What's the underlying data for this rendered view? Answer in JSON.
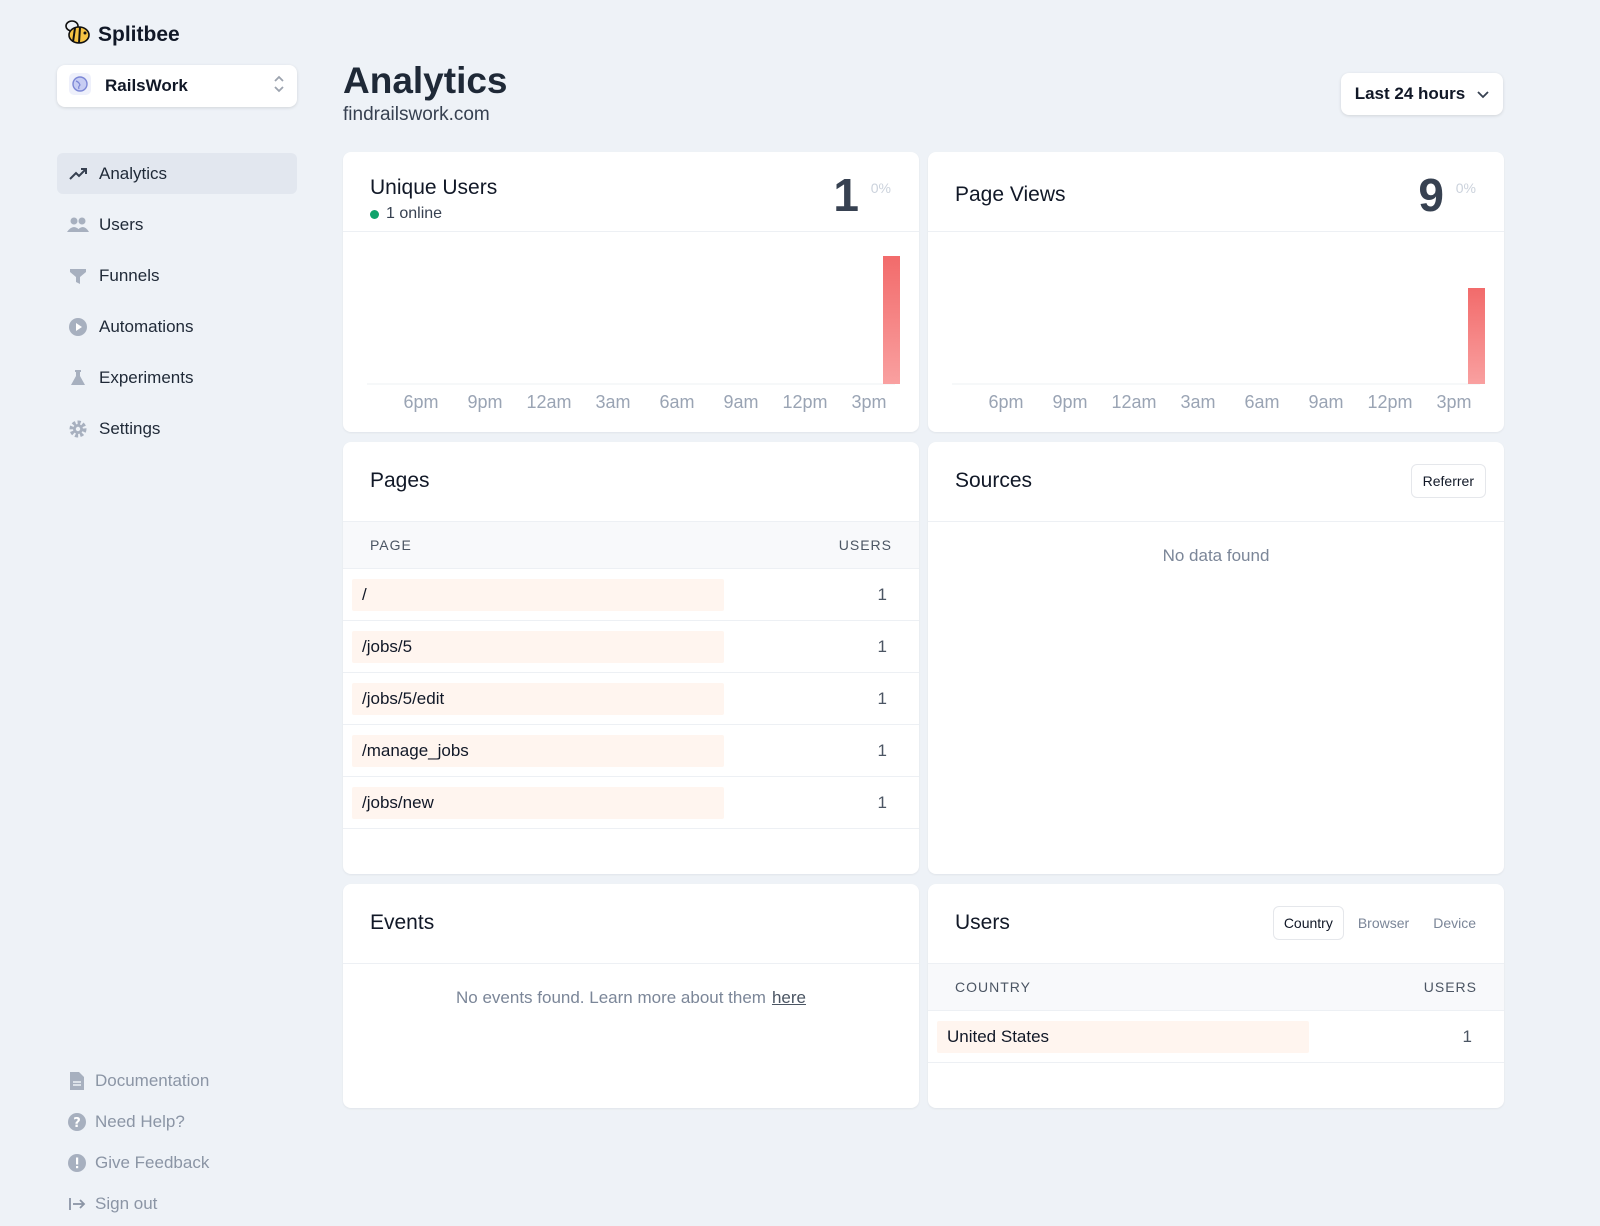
{
  "app": {
    "name": "Splitbee"
  },
  "project": {
    "name": "RailsWork"
  },
  "nav": [
    {
      "label": "Analytics",
      "icon": "trending-up-icon"
    },
    {
      "label": "Users",
      "icon": "users-icon"
    },
    {
      "label": "Funnels",
      "icon": "funnel-icon"
    },
    {
      "label": "Automations",
      "icon": "play-circle-icon"
    },
    {
      "label": "Experiments",
      "icon": "flask-icon"
    },
    {
      "label": "Settings",
      "icon": "gear-icon"
    }
  ],
  "footer_nav": [
    {
      "label": "Documentation",
      "icon": "document-icon"
    },
    {
      "label": "Need Help?",
      "icon": "question-icon"
    },
    {
      "label": "Give Feedback",
      "icon": "exclamation-icon"
    },
    {
      "label": "Sign out",
      "icon": "sign-out-icon"
    }
  ],
  "header": {
    "title": "Analytics",
    "domain": "findrailswork.com",
    "range": "Last 24 hours"
  },
  "unique_users": {
    "title": "Unique Users",
    "value": "1",
    "change": "0%",
    "online": "1 online"
  },
  "page_views": {
    "title": "Page Views",
    "value": "9",
    "change": "0%"
  },
  "chart_data": [
    {
      "type": "bar",
      "title": "Unique Users",
      "categories": [
        "6pm",
        "9pm",
        "12am",
        "3am",
        "6am",
        "9am",
        "12pm",
        "3pm"
      ],
      "values": [
        0,
        0,
        0,
        0,
        0,
        0,
        0,
        1
      ],
      "ylim": [
        0,
        1
      ],
      "color": "#f26b6b"
    },
    {
      "type": "bar",
      "title": "Page Views",
      "categories": [
        "6pm",
        "9pm",
        "12am",
        "3am",
        "6am",
        "9am",
        "12pm",
        "3pm"
      ],
      "values": [
        0,
        0,
        0,
        0,
        0,
        0,
        0,
        9
      ],
      "ylim": [
        0,
        12
      ],
      "color": "#f26b6b"
    }
  ],
  "pages": {
    "title": "Pages",
    "col_page": "PAGE",
    "col_users": "USERS",
    "rows": [
      {
        "page": "/",
        "users": "1"
      },
      {
        "page": "/jobs/5",
        "users": "1"
      },
      {
        "page": "/jobs/5/edit",
        "users": "1"
      },
      {
        "page": "/manage_jobs",
        "users": "1"
      },
      {
        "page": "/jobs/new",
        "users": "1"
      }
    ]
  },
  "sources": {
    "title": "Sources",
    "filter": "Referrer",
    "empty": "No data found"
  },
  "events": {
    "title": "Events",
    "empty": "No events found. Learn more about them",
    "link": "here"
  },
  "users_card": {
    "title": "Users",
    "tabs": [
      "Country",
      "Browser",
      "Device"
    ],
    "col_country": "COUNTRY",
    "col_users": "USERS",
    "rows": [
      {
        "country": "United States",
        "users": "1"
      }
    ]
  }
}
